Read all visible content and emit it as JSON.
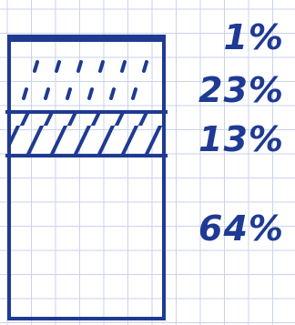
{
  "chart_data": {
    "type": "bar",
    "stacked": true,
    "segments": [
      {
        "label": "1%",
        "value": 1,
        "pattern": "solid"
      },
      {
        "label": "23%",
        "value": 23,
        "pattern": "dashes"
      },
      {
        "label": "13%",
        "value": 13,
        "pattern": "hatch"
      },
      {
        "label": "64%",
        "value": 64,
        "pattern": "empty"
      }
    ],
    "grid": true,
    "ink_color": "#1f3a93",
    "grid_color": "#c9d3ec"
  }
}
